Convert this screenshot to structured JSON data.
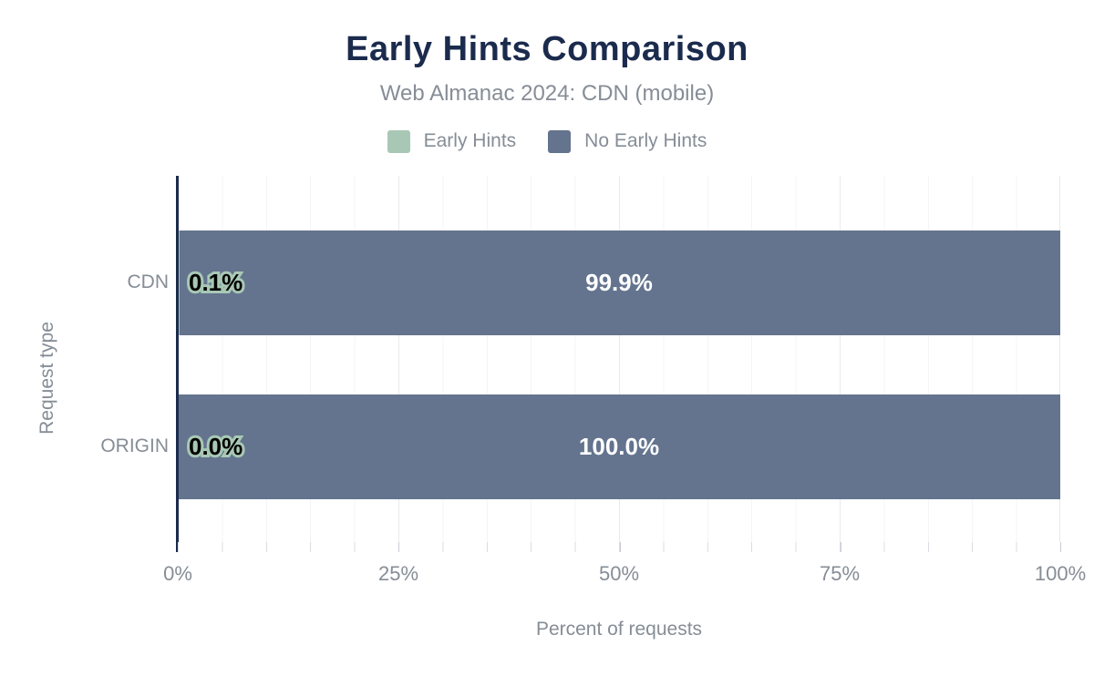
{
  "chart_data": {
    "type": "bar",
    "orientation": "horizontal-stacked",
    "title": "Early Hints Comparison",
    "subtitle": "Web Almanac 2024: CDN (mobile)",
    "categories": [
      "CDN",
      "ORIGIN"
    ],
    "series": [
      {
        "name": "Early Hints",
        "color": "#a8c8b5",
        "values": [
          0.1,
          0.0
        ],
        "labels": [
          "0.1%",
          "0.0%"
        ]
      },
      {
        "name": "No Early Hints",
        "color": "#64748e",
        "values": [
          99.9,
          100.0
        ],
        "labels": [
          "99.9%",
          "100.0%"
        ]
      }
    ],
    "xlabel": "Percent of requests",
    "ylabel": "Request type",
    "x_ticks": [
      "0%",
      "25%",
      "50%",
      "75%",
      "100%"
    ],
    "xlim": [
      0,
      100
    ],
    "grid": "vertical minor gridlines every 5%, major every 25%",
    "legend_position": "top",
    "axis_line_color": "#1b2b4d",
    "title_color": "#1b2b4d",
    "text_color": "#868d96"
  }
}
